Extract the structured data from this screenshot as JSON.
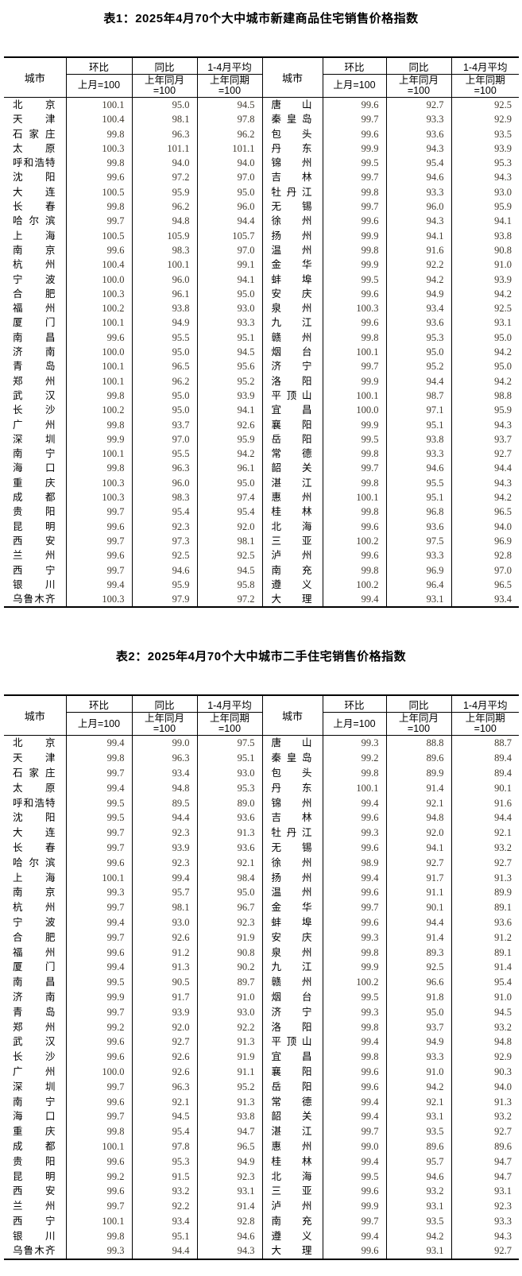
{
  "colors": {
    "background": "#ffffff",
    "border": "#000000",
    "text": "#000000",
    "number_text": "#403a2e"
  },
  "header": {
    "city": "城市",
    "mom": {
      "top": "环比",
      "sub_line1": "上月=100",
      "sub_line2": ""
    },
    "yoy": {
      "top": "同比",
      "sub_line1": "上年同月",
      "sub_line2": "=100"
    },
    "avg": {
      "top": "1-4月平均",
      "sub_line1": "上年同期",
      "sub_line2": "=100"
    }
  },
  "table1": {
    "title": "表1：2025年4月70个大中城市新建商品住宅销售价格指数",
    "rows": [
      [
        "北京",
        "100.1",
        "95.0",
        "94.5",
        "唐山",
        "99.6",
        "92.7",
        "92.5"
      ],
      [
        "天津",
        "100.4",
        "98.1",
        "97.8",
        "秦皇岛",
        "99.7",
        "93.3",
        "92.9"
      ],
      [
        "石家庄",
        "99.8",
        "96.3",
        "96.2",
        "包头",
        "99.6",
        "93.6",
        "93.5"
      ],
      [
        "太原",
        "100.3",
        "101.1",
        "101.1",
        "丹东",
        "99.9",
        "94.3",
        "93.9"
      ],
      [
        "呼和浩特",
        "99.8",
        "94.0",
        "94.0",
        "锦州",
        "99.5",
        "95.4",
        "95.3"
      ],
      [
        "沈阳",
        "99.6",
        "97.2",
        "97.0",
        "吉林",
        "99.7",
        "94.6",
        "94.3"
      ],
      [
        "大连",
        "100.5",
        "95.9",
        "95.0",
        "牡丹江",
        "99.8",
        "93.3",
        "93.0"
      ],
      [
        "长春",
        "99.8",
        "96.2",
        "96.0",
        "无锡",
        "99.7",
        "96.0",
        "95.9"
      ],
      [
        "哈尔滨",
        "99.7",
        "94.8",
        "94.4",
        "徐州",
        "99.6",
        "94.3",
        "94.1"
      ],
      [
        "上海",
        "100.5",
        "105.9",
        "105.7",
        "扬州",
        "99.9",
        "94.1",
        "93.8"
      ],
      [
        "南京",
        "99.6",
        "98.3",
        "97.0",
        "温州",
        "99.8",
        "91.6",
        "90.8"
      ],
      [
        "杭州",
        "100.4",
        "100.1",
        "99.1",
        "金华",
        "99.9",
        "92.2",
        "91.0"
      ],
      [
        "宁波",
        "100.0",
        "96.0",
        "94.1",
        "蚌埠",
        "99.5",
        "94.2",
        "93.9"
      ],
      [
        "合肥",
        "100.3",
        "96.1",
        "95.0",
        "安庆",
        "99.6",
        "94.9",
        "94.2"
      ],
      [
        "福州",
        "100.2",
        "93.8",
        "93.0",
        "泉州",
        "100.3",
        "93.4",
        "92.5"
      ],
      [
        "厦门",
        "100.1",
        "94.9",
        "93.3",
        "九江",
        "99.6",
        "93.6",
        "93.1"
      ],
      [
        "南昌",
        "99.6",
        "95.5",
        "95.1",
        "赣州",
        "99.8",
        "95.3",
        "95.0"
      ],
      [
        "济南",
        "100.0",
        "95.0",
        "94.5",
        "烟台",
        "100.1",
        "95.0",
        "94.2"
      ],
      [
        "青岛",
        "100.1",
        "96.5",
        "95.6",
        "济宁",
        "99.7",
        "95.2",
        "95.0"
      ],
      [
        "郑州",
        "100.1",
        "96.2",
        "95.2",
        "洛阳",
        "99.9",
        "94.4",
        "94.2"
      ],
      [
        "武汉",
        "99.8",
        "95.0",
        "93.9",
        "平顶山",
        "100.1",
        "98.7",
        "98.8"
      ],
      [
        "长沙",
        "100.2",
        "95.0",
        "94.1",
        "宜昌",
        "100.0",
        "97.1",
        "95.9"
      ],
      [
        "广州",
        "99.8",
        "93.7",
        "92.6",
        "襄阳",
        "99.9",
        "95.1",
        "94.3"
      ],
      [
        "深圳",
        "99.9",
        "97.0",
        "95.9",
        "岳阳",
        "99.5",
        "93.8",
        "93.7"
      ],
      [
        "南宁",
        "100.1",
        "95.5",
        "94.2",
        "常德",
        "99.8",
        "93.3",
        "92.7"
      ],
      [
        "海口",
        "99.8",
        "96.3",
        "96.1",
        "韶关",
        "99.7",
        "94.6",
        "94.4"
      ],
      [
        "重庆",
        "100.3",
        "96.0",
        "95.0",
        "湛江",
        "99.8",
        "95.5",
        "94.3"
      ],
      [
        "成都",
        "100.3",
        "98.3",
        "97.4",
        "惠州",
        "100.1",
        "95.1",
        "94.2"
      ],
      [
        "贵阳",
        "99.7",
        "95.4",
        "95.4",
        "桂林",
        "99.8",
        "96.8",
        "96.5"
      ],
      [
        "昆明",
        "99.6",
        "92.3",
        "92.0",
        "北海",
        "99.6",
        "93.6",
        "94.0"
      ],
      [
        "西安",
        "99.7",
        "97.3",
        "98.1",
        "三亚",
        "100.2",
        "97.5",
        "96.9"
      ],
      [
        "兰州",
        "99.6",
        "92.5",
        "92.5",
        "泸州",
        "99.6",
        "93.3",
        "92.8"
      ],
      [
        "西宁",
        "99.7",
        "94.6",
        "94.5",
        "南充",
        "99.8",
        "96.9",
        "97.0"
      ],
      [
        "银川",
        "99.4",
        "95.9",
        "95.8",
        "遵义",
        "100.2",
        "96.4",
        "96.5"
      ],
      [
        "乌鲁木齐",
        "100.3",
        "97.9",
        "97.2",
        "大理",
        "99.4",
        "93.1",
        "93.4"
      ]
    ]
  },
  "table2": {
    "title": "表2：2025年4月70个大中城市二手住宅销售价格指数",
    "rows": [
      [
        "北京",
        "99.4",
        "99.0",
        "97.5",
        "唐山",
        "99.3",
        "88.8",
        "88.7"
      ],
      [
        "天津",
        "99.8",
        "96.3",
        "95.1",
        "秦皇岛",
        "99.2",
        "89.6",
        "89.4"
      ],
      [
        "石家庄",
        "99.7",
        "93.4",
        "93.0",
        "包头",
        "99.8",
        "89.9",
        "89.4"
      ],
      [
        "太原",
        "99.4",
        "94.8",
        "95.3",
        "丹东",
        "100.1",
        "91.4",
        "90.1"
      ],
      [
        "呼和浩特",
        "99.5",
        "89.5",
        "89.0",
        "锦州",
        "99.4",
        "92.1",
        "91.6"
      ],
      [
        "沈阳",
        "99.5",
        "94.4",
        "93.6",
        "吉林",
        "99.6",
        "94.8",
        "94.4"
      ],
      [
        "大连",
        "99.7",
        "92.3",
        "91.3",
        "牡丹江",
        "99.3",
        "92.0",
        "92.1"
      ],
      [
        "长春",
        "99.7",
        "93.9",
        "93.6",
        "无锡",
        "99.6",
        "94.1",
        "93.2"
      ],
      [
        "哈尔滨",
        "99.6",
        "92.3",
        "92.1",
        "徐州",
        "98.9",
        "92.7",
        "92.7"
      ],
      [
        "上海",
        "100.1",
        "99.4",
        "98.4",
        "扬州",
        "99.4",
        "91.7",
        "91.3"
      ],
      [
        "南京",
        "99.3",
        "95.7",
        "95.0",
        "温州",
        "99.6",
        "91.1",
        "89.9"
      ],
      [
        "杭州",
        "99.7",
        "98.1",
        "96.7",
        "金华",
        "99.7",
        "90.1",
        "89.1"
      ],
      [
        "宁波",
        "99.4",
        "93.0",
        "92.3",
        "蚌埠",
        "99.6",
        "94.4",
        "93.6"
      ],
      [
        "合肥",
        "99.7",
        "92.6",
        "91.9",
        "安庆",
        "99.3",
        "91.4",
        "91.2"
      ],
      [
        "福州",
        "99.6",
        "91.2",
        "90.8",
        "泉州",
        "99.8",
        "89.3",
        "89.1"
      ],
      [
        "厦门",
        "99.4",
        "91.3",
        "90.2",
        "九江",
        "99.9",
        "92.5",
        "91.4"
      ],
      [
        "南昌",
        "99.5",
        "90.5",
        "89.7",
        "赣州",
        "100.2",
        "96.6",
        "95.4"
      ],
      [
        "济南",
        "99.9",
        "91.7",
        "91.0",
        "烟台",
        "99.5",
        "91.8",
        "91.0"
      ],
      [
        "青岛",
        "99.7",
        "93.9",
        "93.0",
        "济宁",
        "99.3",
        "95.0",
        "94.5"
      ],
      [
        "郑州",
        "99.2",
        "92.0",
        "92.2",
        "洛阳",
        "99.8",
        "93.7",
        "93.2"
      ],
      [
        "武汉",
        "99.6",
        "92.7",
        "91.3",
        "平顶山",
        "99.4",
        "94.9",
        "94.8"
      ],
      [
        "长沙",
        "99.6",
        "92.6",
        "91.9",
        "宜昌",
        "99.8",
        "93.3",
        "92.9"
      ],
      [
        "广州",
        "100.0",
        "92.6",
        "91.1",
        "襄阳",
        "99.6",
        "91.0",
        "90.3"
      ],
      [
        "深圳",
        "99.7",
        "96.3",
        "95.2",
        "岳阳",
        "99.6",
        "94.2",
        "94.0"
      ],
      [
        "南宁",
        "99.6",
        "92.1",
        "91.3",
        "常德",
        "99.4",
        "92.1",
        "91.3"
      ],
      [
        "海口",
        "99.7",
        "94.5",
        "93.8",
        "韶关",
        "99.4",
        "93.1",
        "93.2"
      ],
      [
        "重庆",
        "99.8",
        "95.4",
        "94.7",
        "湛江",
        "99.7",
        "93.5",
        "92.7"
      ],
      [
        "成都",
        "100.1",
        "97.8",
        "96.5",
        "惠州",
        "99.0",
        "89.6",
        "89.6"
      ],
      [
        "贵阳",
        "99.6",
        "95.3",
        "94.9",
        "桂林",
        "99.4",
        "95.7",
        "94.7"
      ],
      [
        "昆明",
        "99.2",
        "91.5",
        "92.3",
        "北海",
        "99.5",
        "94.6",
        "94.7"
      ],
      [
        "西安",
        "99.6",
        "93.2",
        "93.1",
        "三亚",
        "99.6",
        "93.2",
        "93.1"
      ],
      [
        "兰州",
        "99.7",
        "92.2",
        "91.4",
        "泸州",
        "99.9",
        "93.1",
        "92.3"
      ],
      [
        "西宁",
        "100.1",
        "93.4",
        "92.8",
        "南充",
        "99.7",
        "93.5",
        "93.3"
      ],
      [
        "银川",
        "99.8",
        "95.1",
        "94.6",
        "遵义",
        "99.4",
        "94.2",
        "94.3"
      ],
      [
        "乌鲁木齐",
        "99.3",
        "94.4",
        "94.3",
        "大理",
        "99.6",
        "93.1",
        "92.7"
      ]
    ]
  }
}
